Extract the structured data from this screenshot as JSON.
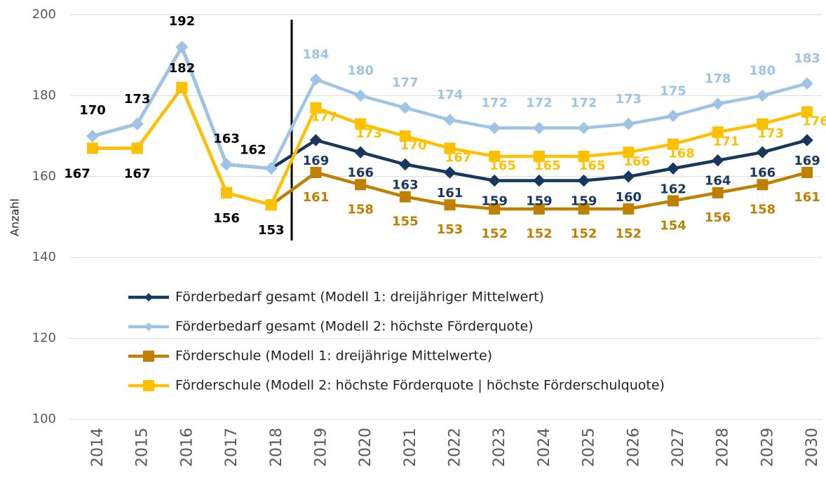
{
  "chart_data": {
    "type": "line",
    "y_label": "Anzahl",
    "categories": [
      "2014",
      "2015",
      "2016",
      "2017",
      "2018",
      "2019",
      "2020",
      "2021",
      "2022",
      "2023",
      "2024",
      "2025",
      "2026",
      "2027",
      "2028",
      "2029",
      "2030"
    ],
    "series": [
      {
        "name": "Förderbedarf gesamt (Modell 1: dreijähriger Mittelwert)",
        "color": "#17375e",
        "marker": "diamond",
        "values": [
          170,
          173,
          192,
          163,
          162,
          169,
          166,
          163,
          161,
          159,
          159,
          159,
          160,
          162,
          164,
          166,
          169
        ]
      },
      {
        "name": "Förderbedarf gesamt (Modell 2: höchste Förderquote)",
        "color": "#9dc3e6",
        "marker": "diamond",
        "values": [
          170,
          173,
          192,
          163,
          162,
          184,
          180,
          177,
          174,
          172,
          172,
          172,
          173,
          175,
          178,
          180,
          183
        ]
      },
      {
        "name": "Förderschule (Modell 1: dreijährige Mittelwerte)",
        "color": "#bf8000",
        "marker": "square",
        "values": [
          167,
          167,
          182,
          156,
          153,
          161,
          158,
          155,
          153,
          152,
          152,
          152,
          152,
          154,
          156,
          158,
          161
        ]
      },
      {
        "name": "Förderschule (Modell 2: höchste Förderquote | höchste Förderschulquote)",
        "color": "#ffc000",
        "marker": "square",
        "values": [
          167,
          167,
          182,
          156,
          153,
          177,
          173,
          170,
          167,
          165,
          165,
          165,
          166,
          168,
          171,
          173,
          176
        ]
      }
    ],
    "ylim": [
      100,
      200
    ],
    "yticks": [
      100,
      120,
      140,
      160,
      180,
      200
    ],
    "grid": true
  }
}
